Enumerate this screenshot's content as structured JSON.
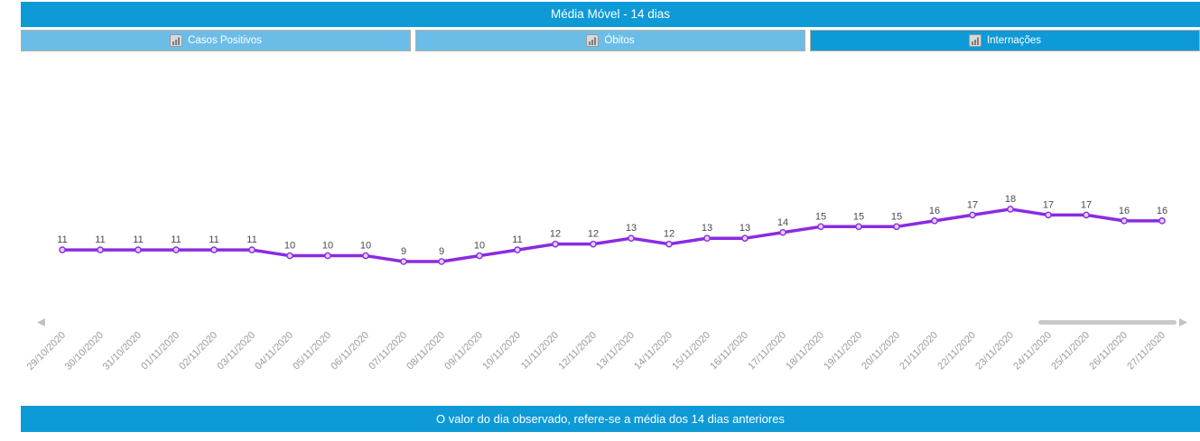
{
  "header": {
    "title": "Média Móvel - 14 dias"
  },
  "tabs": [
    {
      "label": "Casos Positivos",
      "active": false
    },
    {
      "label": "Óbitos",
      "active": false
    },
    {
      "label": "Internações",
      "active": true
    }
  ],
  "footer": {
    "note": "O valor do dia observado, refere-se a média dos 14 dias anteriores"
  },
  "colors": {
    "accent_blue": "#0d9ad7",
    "inactive_tab_blue": "#6bbde8",
    "tab_border": "#b7ae9f",
    "line_purple": "#8a2be2",
    "marker_fill": "#e3d0f8",
    "value_label": "#4a4a4a",
    "date_label": "#9b9b9b",
    "scrollbar_grey": "#c9c9c9"
  },
  "icons": {
    "tab_icon": "bar-chart-icon",
    "scroll_left": "scroll-left-arrow-icon",
    "scroll_right": "scroll-right-arrow-icon"
  },
  "chart_data": {
    "type": "line",
    "title": "Média Móvel - 14 dias",
    "xlabel": "",
    "ylabel": "",
    "grid": false,
    "legend": "none",
    "point_labels": true,
    "x": [
      "29/10/2020",
      "30/10/2020",
      "31/10/2020",
      "01/11/2020",
      "02/11/2020",
      "03/11/2020",
      "04/11/2020",
      "05/11/2020",
      "06/11/2020",
      "07/11/2020",
      "08/11/2020",
      "09/11/2020",
      "10/11/2020",
      "11/11/2020",
      "12/11/2020",
      "13/11/2020",
      "14/11/2020",
      "15/11/2020",
      "16/11/2020",
      "17/11/2020",
      "18/11/2020",
      "19/11/2020",
      "20/11/2020",
      "21/11/2020",
      "22/11/2020",
      "23/11/2020",
      "24/11/2020",
      "25/11/2020",
      "26/11/2020",
      "27/11/2020"
    ],
    "series": [
      {
        "name": "Internações",
        "values": [
          11,
          11,
          11,
          11,
          11,
          11,
          10,
          10,
          10,
          9,
          9,
          10,
          11,
          12,
          12,
          13,
          12,
          13,
          13,
          14,
          15,
          15,
          15,
          16,
          17,
          18,
          17,
          17,
          16,
          16
        ]
      }
    ],
    "ylim": [
      8,
      19
    ],
    "scrollbar": {
      "left_arrow": true,
      "right_arrow": true,
      "thumb_visible": true
    }
  }
}
